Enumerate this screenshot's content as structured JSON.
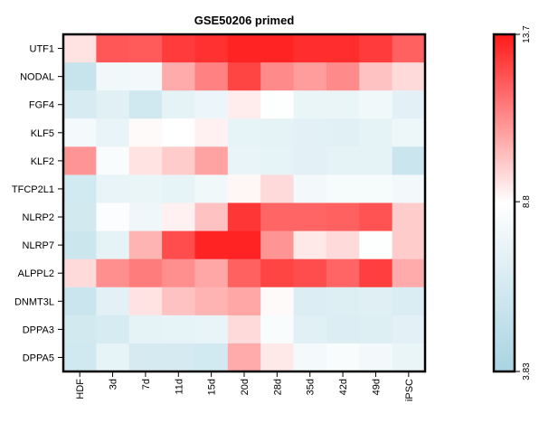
{
  "chart_data": {
    "type": "heatmap",
    "title": "GSE50206 primed",
    "xlabel": "",
    "ylabel": "",
    "columns": [
      "HDF",
      "3d",
      "7d",
      "11d",
      "15d",
      "20d",
      "28d",
      "35d",
      "42d",
      "49d",
      "iPSC"
    ],
    "rows": [
      "UTF1",
      "NODAL",
      "FGF4",
      "KLF5",
      "KLF2",
      "TFCP2L1",
      "NLRP2",
      "NLRP7",
      "ALPPL2",
      "DNMT3L",
      "DPPA3",
      "DPPA5"
    ],
    "values": [
      [
        9.4,
        12.4,
        12.3,
        13.0,
        13.2,
        13.5,
        13.5,
        13.3,
        13.3,
        13.0,
        12.2
      ],
      [
        5.6,
        8.0,
        8.1,
        10.6,
        11.5,
        12.8,
        11.3,
        10.9,
        11.3,
        10.1,
        9.6
      ],
      [
        6.5,
        7.1,
        6.1,
        7.3,
        7.7,
        9.2,
        8.7,
        7.6,
        7.6,
        8.0,
        7.2
      ],
      [
        8.2,
        7.5,
        8.9,
        8.8,
        9.1,
        7.4,
        7.3,
        7.2,
        7.1,
        7.3,
        7.8
      ],
      [
        11.1,
        8.4,
        9.4,
        9.9,
        10.8,
        7.5,
        7.4,
        7.2,
        7.3,
        7.3,
        5.8
      ],
      [
        6.2,
        7.5,
        7.6,
        7.4,
        8.0,
        9.0,
        9.6,
        8.1,
        8.3,
        8.3,
        8.1
      ],
      [
        6.3,
        8.6,
        7.9,
        9.1,
        10.1,
        13.1,
        12.1,
        12.1,
        12.2,
        12.5,
        9.9
      ],
      [
        5.9,
        7.3,
        10.4,
        12.6,
        13.5,
        13.5,
        11.1,
        9.3,
        9.6,
        8.7,
        9.9
      ],
      [
        9.6,
        11.2,
        11.6,
        11.2,
        10.7,
        12.2,
        12.8,
        12.6,
        12.1,
        12.9,
        10.6
      ],
      [
        5.8,
        7.2,
        9.4,
        10.1,
        10.4,
        10.7,
        8.9,
        6.8,
        6.9,
        7.0,
        6.7
      ],
      [
        6.3,
        6.5,
        7.3,
        7.4,
        7.5,
        9.6,
        8.4,
        7.1,
        6.8,
        6.9,
        7.2
      ],
      [
        6.1,
        7.4,
        6.4,
        6.4,
        6.2,
        10.6,
        9.3,
        8.2,
        8.4,
        8.1,
        7.6
      ]
    ],
    "colorscale": {
      "min": 3.83,
      "mid": 8.8,
      "max": 13.7,
      "min_color": "#a8d4e2",
      "mid_color": "#ffffff",
      "max_color": "#ff1a1a",
      "tick_labels": [
        "3.83",
        "8.8",
        "13.7"
      ]
    },
    "legend_position": "right",
    "grid": false
  }
}
